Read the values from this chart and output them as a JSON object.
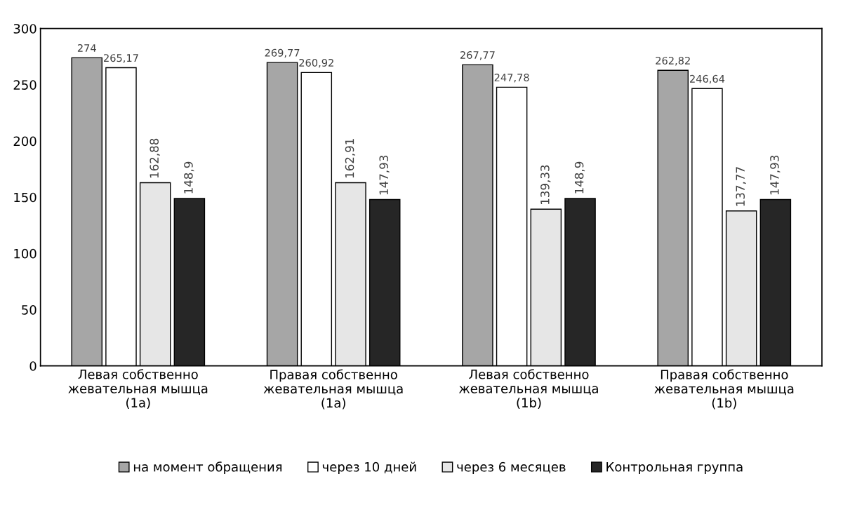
{
  "chart_data": {
    "type": "bar",
    "categories": [
      "Левая собственно\nжевательная мышца\n(1a)",
      "Правая собственно\nжевательная мышца\n(1a)",
      "Левая собственно\nжевательная мышца\n(1b)",
      "Правая собственно\nжевательная мышца\n(1b)"
    ],
    "series": [
      {
        "name": "на момент обращения",
        "color": "#a6a6a6",
        "values": [
          274,
          269.77,
          267.77,
          262.82
        ],
        "value_labels": [
          "274",
          "269,77",
          "267,77",
          "262,82"
        ]
      },
      {
        "name": "через 10 дней",
        "color": "#ffffff",
        "values": [
          265.17,
          260.92,
          247.78,
          246.64
        ],
        "value_labels": [
          "265,17",
          "260,92",
          "247,78",
          "246,64"
        ]
      },
      {
        "name": "через 6 месяцев",
        "color": "#e6e6e6",
        "values": [
          162.88,
          162.91,
          139.33,
          137.77
        ],
        "value_labels": [
          "162,88",
          "162,91",
          "139,33",
          "137,77"
        ]
      },
      {
        "name": "Контрольная группа",
        "color": "#262626",
        "values": [
          148.9,
          147.93,
          148.9,
          147.93
        ],
        "value_labels": [
          "148,9",
          "147,93",
          "148,9",
          "147,93"
        ]
      }
    ],
    "ylim": [
      0,
      300
    ],
    "yticks": [
      0,
      50,
      100,
      150,
      200,
      250,
      300
    ],
    "grid": false,
    "legend": "bottom"
  }
}
